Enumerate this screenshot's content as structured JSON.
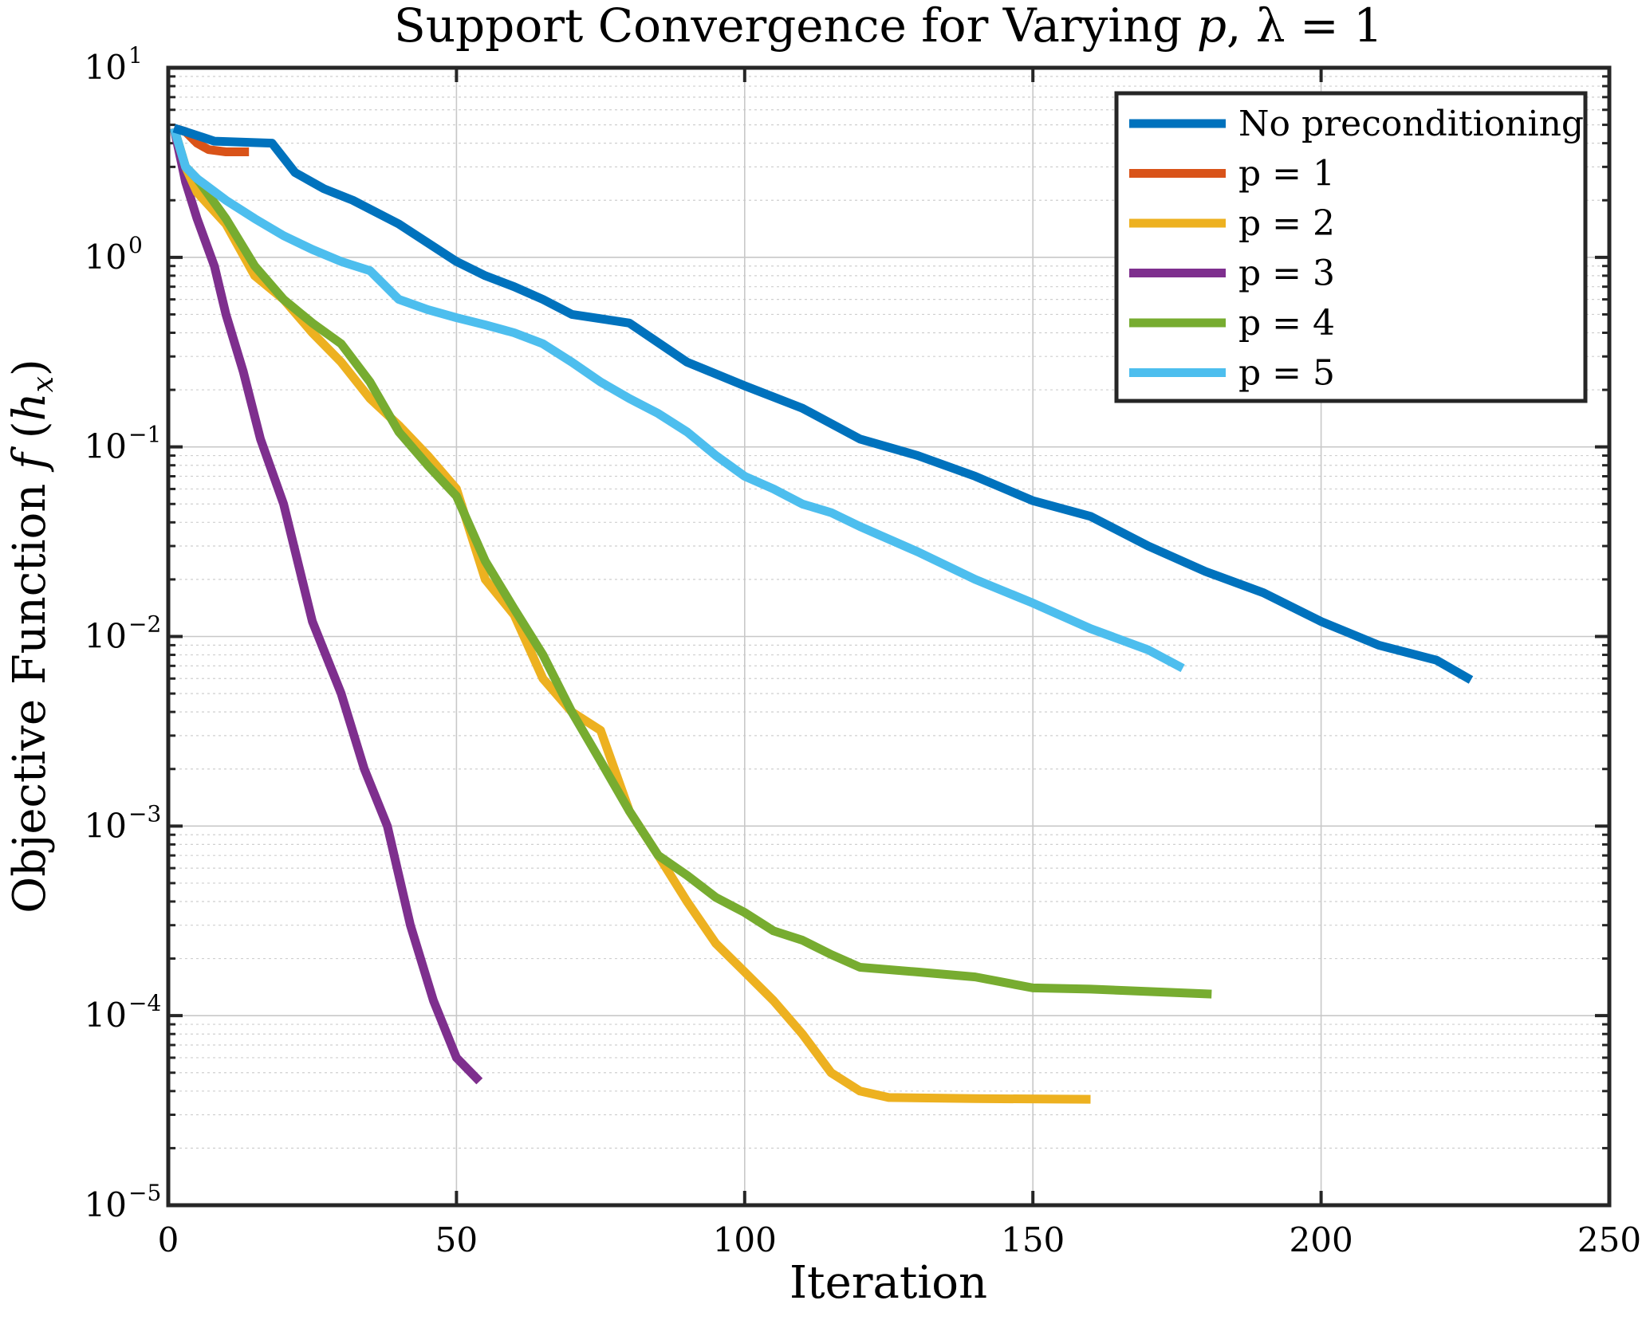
{
  "chart_data": {
    "type": "line",
    "title": "Support Convergence for Varying p, λ = 1",
    "title_parts": [
      "Support Convergence for Varying ",
      "p",
      ", λ = 1"
    ],
    "xlabel": "Iteration",
    "ylabel": "Objective Function f (h_x)",
    "ylabel_parts": [
      "Objective Function ",
      "f",
      " (",
      "h",
      "x",
      ")"
    ],
    "xlim": [
      0,
      250
    ],
    "ylim": [
      1e-05,
      10
    ],
    "y_scale": "log",
    "x_ticks": [
      0,
      50,
      100,
      150,
      200,
      250
    ],
    "x_tick_labels": [
      "0",
      "50",
      "100",
      "150",
      "200",
      "250"
    ],
    "y_ticks": [
      10,
      1,
      0.1,
      0.01,
      0.001,
      0.0001,
      1e-05
    ],
    "y_tick_labels": [
      {
        "base": "10",
        "exp": "1"
      },
      {
        "base": "10",
        "exp": "0"
      },
      {
        "base": "10",
        "exp": "−1"
      },
      {
        "base": "10",
        "exp": "−2"
      },
      {
        "base": "10",
        "exp": "−3"
      },
      {
        "base": "10",
        "exp": "−4"
      },
      {
        "base": "10",
        "exp": "−5"
      }
    ],
    "grid": true,
    "legend_position": "top-right",
    "series": [
      {
        "name": "No preconditioning",
        "color": "#0072BD",
        "x": [
          1,
          3,
          8,
          18,
          22,
          27,
          32,
          40,
          50,
          55,
          60,
          65,
          70,
          80,
          90,
          100,
          110,
          120,
          130,
          140,
          150,
          160,
          170,
          180,
          190,
          200,
          210,
          220,
          226
        ],
        "y": [
          4.8,
          4.6,
          4.1,
          4.0,
          2.8,
          2.3,
          2.0,
          1.5,
          0.95,
          0.8,
          0.7,
          0.6,
          0.5,
          0.45,
          0.28,
          0.21,
          0.16,
          0.11,
          0.09,
          0.07,
          0.052,
          0.043,
          0.03,
          0.022,
          0.017,
          0.012,
          0.009,
          0.0075,
          0.0059
        ]
      },
      {
        "name": "p = 1",
        "color": "#D95319",
        "x": [
          1,
          3,
          5,
          7,
          10,
          14
        ],
        "y": [
          4.8,
          4.6,
          4.0,
          3.7,
          3.6,
          3.6
        ]
      },
      {
        "name": "p = 2",
        "color": "#EDB120",
        "x": [
          1,
          3,
          5,
          10,
          15,
          20,
          25,
          30,
          35,
          40,
          45,
          50,
          55,
          60,
          65,
          70,
          75,
          80,
          85,
          90,
          95,
          100,
          105,
          110,
          115,
          120,
          125,
          140,
          160
        ],
        "y": [
          4.8,
          3.0,
          2.2,
          1.5,
          0.8,
          0.6,
          0.4,
          0.28,
          0.18,
          0.13,
          0.09,
          0.06,
          0.02,
          0.013,
          0.006,
          0.004,
          0.0032,
          0.0012,
          0.0007,
          0.0004,
          0.00024,
          0.00017,
          0.00012,
          8e-05,
          5e-05,
          4e-05,
          3.7e-05,
          3.65e-05,
          3.62e-05
        ]
      },
      {
        "name": "p = 3",
        "color": "#7E2F8E",
        "x": [
          1,
          3,
          5,
          8,
          10,
          13,
          16,
          20,
          25,
          30,
          34,
          38,
          42,
          46,
          50,
          54
        ],
        "y": [
          4.8,
          2.5,
          1.6,
          0.9,
          0.5,
          0.25,
          0.11,
          0.05,
          0.012,
          0.005,
          0.002,
          0.001,
          0.0003,
          0.00012,
          6e-05,
          4.5e-05
        ]
      },
      {
        "name": "p = 4",
        "color": "#77AC30",
        "x": [
          1,
          3,
          5,
          10,
          15,
          20,
          25,
          30,
          35,
          40,
          45,
          50,
          55,
          60,
          65,
          70,
          75,
          80,
          85,
          90,
          95,
          100,
          105,
          110,
          115,
          120,
          130,
          140,
          150,
          160,
          170,
          181
        ],
        "y": [
          4.8,
          3.0,
          2.6,
          1.6,
          0.9,
          0.6,
          0.45,
          0.35,
          0.22,
          0.12,
          0.08,
          0.055,
          0.025,
          0.014,
          0.008,
          0.004,
          0.0022,
          0.0012,
          0.0007,
          0.00055,
          0.00042,
          0.00035,
          0.00028,
          0.00025,
          0.00021,
          0.00018,
          0.00017,
          0.00016,
          0.00014,
          0.000138,
          0.000134,
          0.00013
        ]
      },
      {
        "name": "p = 5",
        "color": "#4DBEEE",
        "x": [
          1,
          3,
          5,
          10,
          15,
          20,
          25,
          30,
          35,
          40,
          45,
          50,
          55,
          60,
          65,
          70,
          75,
          80,
          85,
          90,
          95,
          100,
          105,
          110,
          115,
          120,
          130,
          140,
          150,
          160,
          170,
          176
        ],
        "y": [
          4.8,
          3.0,
          2.6,
          2.0,
          1.6,
          1.3,
          1.1,
          0.95,
          0.85,
          0.6,
          0.53,
          0.48,
          0.44,
          0.4,
          0.35,
          0.28,
          0.22,
          0.18,
          0.15,
          0.12,
          0.09,
          0.07,
          0.06,
          0.05,
          0.045,
          0.038,
          0.028,
          0.02,
          0.015,
          0.011,
          0.0085,
          0.0068
        ]
      }
    ]
  }
}
